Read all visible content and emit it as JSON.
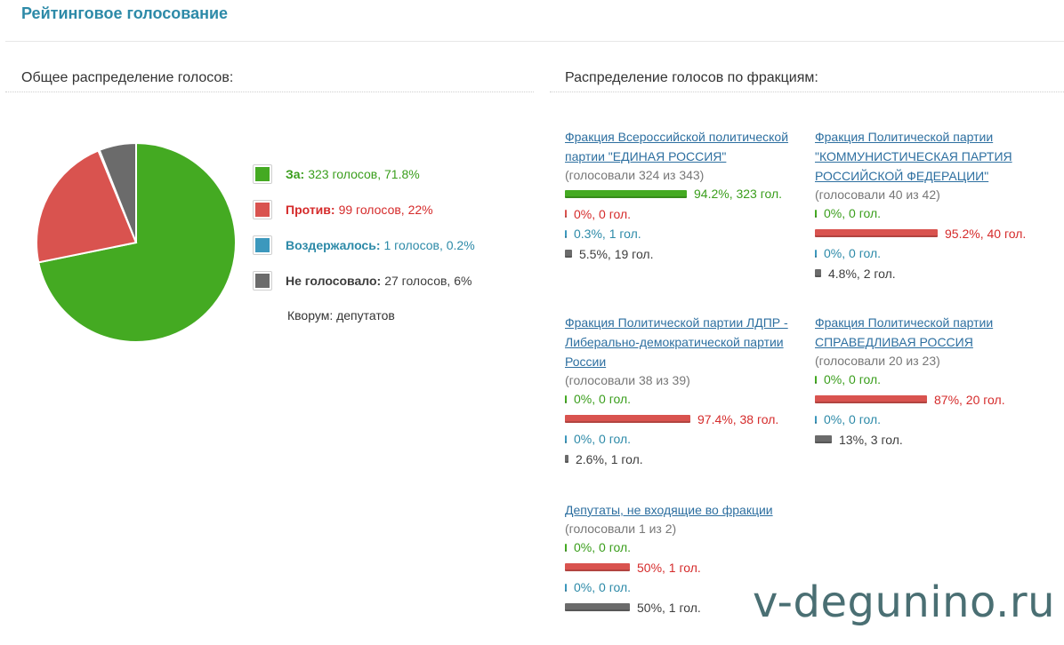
{
  "page_title": "Рейтинговое голосование",
  "overall": {
    "heading": "Общее распределение голосов:",
    "quorum": "Кворум: депутатов"
  },
  "factions_heading": "Распределение голосов по фракциям:",
  "colors": {
    "for": "#44aa22",
    "against": "#d9534f",
    "abstain": "#3c98bd",
    "absent": "#6b6b6b"
  },
  "watermark": "v-degunino.ru",
  "chart_data": [
    {
      "type": "pie",
      "categories": [
        "За",
        "Против",
        "Воздержалось",
        "Не голосовало"
      ],
      "values": [
        71.8,
        22,
        0.2,
        6
      ],
      "labels": [
        "За:",
        "Против:",
        "Воздержалось:",
        "Не голосовало:"
      ],
      "details": [
        "323 голосов, 71.8%",
        "99 голосов, 22%",
        "1 голосов, 0.2%",
        "27 голосов, 6%"
      ],
      "legend": "right"
    },
    {
      "type": "bar",
      "title": "Фракция Всероссийской политической партии \"ЕДИНАЯ РОССИЯ\"",
      "subtitle": "(голосовали 324 из 343)",
      "categories": [
        "for",
        "against",
        "abstain",
        "absent"
      ],
      "values": [
        94.2,
        0,
        0.3,
        5.5
      ],
      "labels": [
        "94.2%, 323 гол.",
        "0%, 0 гол.",
        "0.3%, 1 гол.",
        "5.5%, 19 гол."
      ]
    },
    {
      "type": "bar",
      "title": "Фракция Политической партии \"КОММУНИСТИЧЕСКАЯ ПАРТИЯ РОССИЙСКОЙ ФЕДЕРАЦИИ\"",
      "subtitle": "(голосовали 40 из 42)",
      "categories": [
        "for",
        "against",
        "abstain",
        "absent"
      ],
      "values": [
        0,
        95.2,
        0,
        4.8
      ],
      "labels": [
        "0%, 0 гол.",
        "95.2%, 40 гол.",
        "0%, 0 гол.",
        "4.8%, 2 гол."
      ]
    },
    {
      "type": "bar",
      "title": "Фракция Политической партии ЛДПР - Либерально-демократической партии России",
      "subtitle": "(голосовали 38 из 39)",
      "categories": [
        "for",
        "against",
        "abstain",
        "absent"
      ],
      "values": [
        0,
        97.4,
        0,
        2.6
      ],
      "labels": [
        "0%, 0 гол.",
        "97.4%, 38 гол.",
        "0%, 0 гол.",
        "2.6%, 1 гол."
      ]
    },
    {
      "type": "bar",
      "title": "Фракция Политической партии СПРАВЕДЛИВАЯ РОССИЯ",
      "subtitle": "(голосовали 20 из 23)",
      "categories": [
        "for",
        "against",
        "abstain",
        "absent"
      ],
      "values": [
        0,
        87,
        0,
        13
      ],
      "labels": [
        "0%, 0 гол.",
        "87%, 20 гол.",
        "0%, 0 гол.",
        "13%, 3 гол."
      ]
    },
    {
      "type": "bar",
      "title": "Депутаты, не входящие во фракции",
      "subtitle": "(голосовали 1 из 2)",
      "categories": [
        "for",
        "against",
        "abstain",
        "absent"
      ],
      "values": [
        0,
        50,
        0,
        50
      ],
      "labels": [
        "0%, 0 гол.",
        "50%, 1 гол.",
        "0%, 0 гол.",
        "50%, 1 гол."
      ]
    }
  ]
}
